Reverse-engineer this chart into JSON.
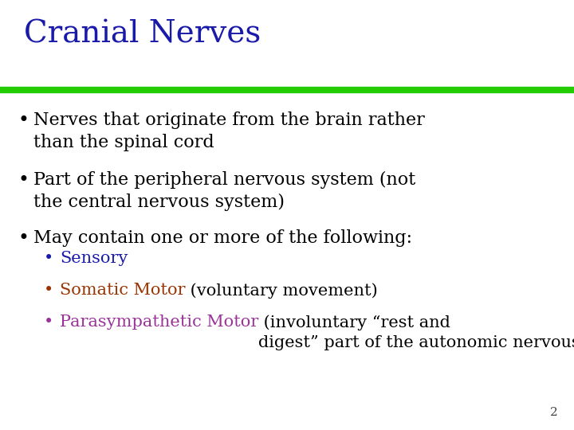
{
  "title": "Cranial Nerves",
  "title_color": "#1a1aaa",
  "title_fontsize": 28,
  "background_color": "#ffffff",
  "green_line_color": "#22cc00",
  "bullet_color": "#000000",
  "bullet_fontsize": 16,
  "sub_bullet_fontsize": 15,
  "slide_number": "2",
  "slide_number_color": "#444444",
  "bullets": [
    {
      "text": "Nerves that originate from the brain rather\nthan the spinal cord",
      "color": "#000000"
    },
    {
      "text": "Part of the peripheral nervous system (not\nthe central nervous system)",
      "color": "#000000"
    },
    {
      "text": "May contain one or more of the following:",
      "color": "#000000"
    }
  ],
  "sub_bullets": [
    {
      "segments": [
        {
          "text": "Sensory",
          "color": "#1a1aaa"
        }
      ]
    },
    {
      "segments": [
        {
          "text": "Somatic Motor",
          "color": "#993300"
        },
        {
          "text": " (voluntary movement)",
          "color": "#000000"
        }
      ]
    },
    {
      "segments": [
        {
          "text": "Parasympathetic Motor",
          "color": "#993399"
        },
        {
          "text": " (involuntary “rest and\ndigest” part of the autonomic nervous system)",
          "color": "#000000"
        }
      ]
    }
  ]
}
